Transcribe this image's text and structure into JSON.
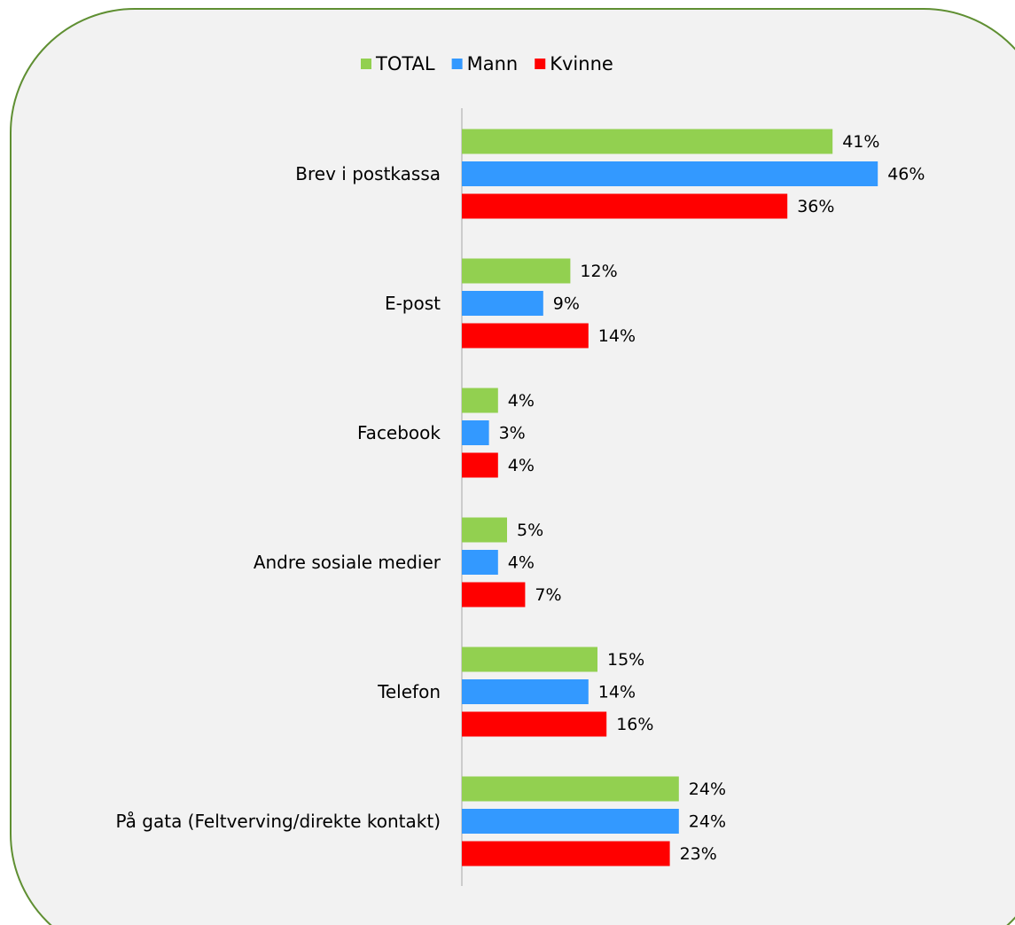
{
  "chart_data": {
    "type": "bar",
    "orientation": "horizontal",
    "categories": [
      "Brev i postkassa",
      "E-post",
      "Facebook",
      "Andre sosiale medier",
      "Telefon",
      "På gata (Feltverving/direkte kontakt)"
    ],
    "series": [
      {
        "name": "TOTAL",
        "color": "#92d050",
        "values": [
          41,
          12,
          4,
          5,
          15,
          24
        ],
        "value_labels": [
          "41%",
          "12%",
          "4%",
          "5%",
          "15%",
          "24%"
        ]
      },
      {
        "name": "Mann",
        "color": "#3399ff",
        "values": [
          46,
          9,
          3,
          4,
          14,
          24
        ],
        "value_labels": [
          "46%",
          "9%",
          "3%",
          "4%",
          "14%",
          "24%"
        ]
      },
      {
        "name": "Kvinne",
        "color": "#ff0000",
        "values": [
          36,
          14,
          4,
          7,
          16,
          23
        ],
        "value_labels": [
          "36%",
          "14%",
          "4%",
          "7%",
          "16%",
          "23%"
        ]
      }
    ],
    "xlim": [
      0,
      60
    ],
    "legend": "top"
  }
}
